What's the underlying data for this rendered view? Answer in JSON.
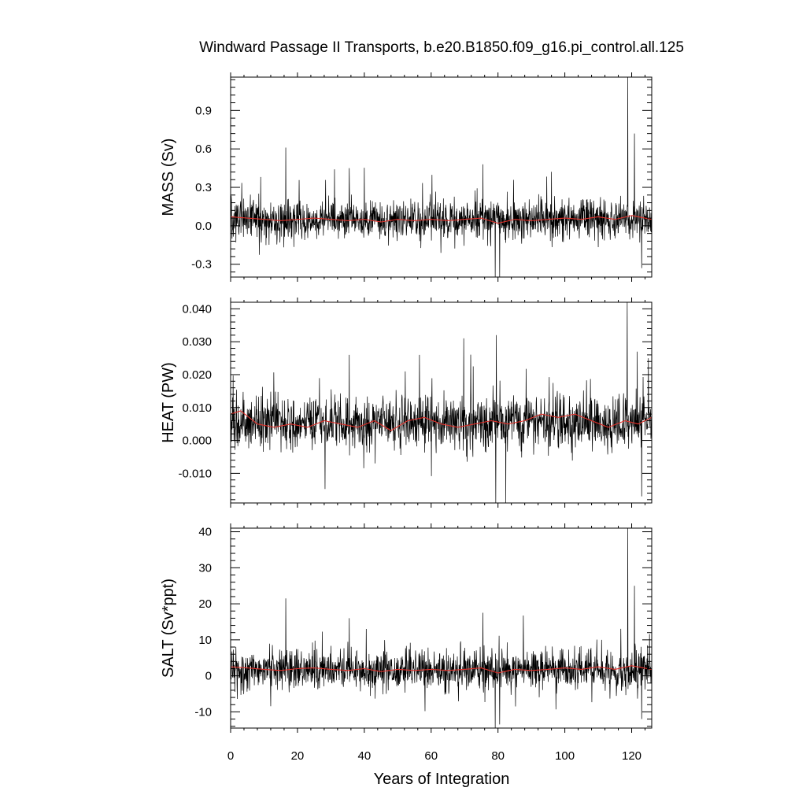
{
  "chart_data": {
    "title": "Windward Passage II Transports, b.e20.B1850.f09_g16.pi_control.all.125",
    "xlabel": "Years of Integration",
    "xlim": [
      0,
      126
    ],
    "x_ticks": [
      {
        "value": 0,
        "label": "0"
      },
      {
        "value": 20,
        "label": "20"
      },
      {
        "value": 40,
        "label": "40"
      },
      {
        "value": 60,
        "label": "60"
      },
      {
        "value": 80,
        "label": "80"
      },
      {
        "value": 100,
        "label": "100"
      },
      {
        "value": 120,
        "label": "120"
      }
    ],
    "colors": {
      "monthly": "#000000",
      "smoothed": "#e0302a",
      "frame": "#000000"
    },
    "panels": [
      {
        "type": "line",
        "ylabel": "MASS (Sv)",
        "ylim": [
          -0.4,
          1.16
        ],
        "y_ticks": [
          {
            "value": -0.3,
            "label": "-0.3"
          },
          {
            "value": 0.0,
            "label": "0.0"
          },
          {
            "value": 0.3,
            "label": "0.3"
          },
          {
            "value": 0.6,
            "label": "0.6"
          },
          {
            "value": 0.9,
            "label": "0.9"
          }
        ],
        "noise_baseline": 0.045,
        "noise_amplitude": 0.09,
        "spikes": [
          [
            16.5,
            0.61
          ],
          [
            35.5,
            0.45
          ],
          [
            75.5,
            0.48
          ],
          [
            79.2,
            -0.4
          ],
          [
            80.5,
            -0.4
          ],
          [
            118.8,
            1.16
          ],
          [
            120.8,
            0.72
          ],
          [
            123.0,
            -0.33
          ]
        ],
        "smoothed": [
          [
            0,
            0.07
          ],
          [
            5,
            0.06
          ],
          [
            10,
            0.05
          ],
          [
            15,
            0.04
          ],
          [
            20,
            0.05
          ],
          [
            25,
            0.06
          ],
          [
            30,
            0.05
          ],
          [
            35,
            0.04
          ],
          [
            40,
            0.05
          ],
          [
            45,
            0.03
          ],
          [
            50,
            0.05
          ],
          [
            55,
            0.04
          ],
          [
            60,
            0.05
          ],
          [
            65,
            0.04
          ],
          [
            70,
            0.05
          ],
          [
            75,
            0.06
          ],
          [
            80,
            0.02
          ],
          [
            85,
            0.05
          ],
          [
            90,
            0.04
          ],
          [
            95,
            0.05
          ],
          [
            100,
            0.06
          ],
          [
            105,
            0.05
          ],
          [
            110,
            0.07
          ],
          [
            115,
            0.05
          ],
          [
            120,
            0.08
          ],
          [
            126,
            0.05
          ]
        ]
      },
      {
        "type": "line",
        "ylabel": "HEAT (PW)",
        "ylim": [
          -0.019,
          0.042
        ],
        "y_ticks": [
          {
            "value": -0.01,
            "label": "-0.010"
          },
          {
            "value": 0.0,
            "label": "0.000"
          },
          {
            "value": 0.01,
            "label": "0.010"
          },
          {
            "value": 0.02,
            "label": "0.020"
          },
          {
            "value": 0.03,
            "label": "0.030"
          },
          {
            "value": 0.04,
            "label": "0.040"
          }
        ],
        "noise_baseline": 0.0055,
        "noise_amplitude": 0.0048,
        "spikes": [
          [
            35.5,
            0.026
          ],
          [
            56.5,
            0.026
          ],
          [
            79.5,
            0.032
          ],
          [
            79.3,
            -0.019
          ],
          [
            118.7,
            0.042
          ],
          [
            121.7,
            0.027
          ],
          [
            123.0,
            -0.017
          ],
          [
            125.0,
            0.025
          ]
        ],
        "smoothed": [
          [
            0,
            0.008
          ],
          [
            3,
            0.009
          ],
          [
            8,
            0.005
          ],
          [
            13,
            0.004
          ],
          [
            18,
            0.005
          ],
          [
            23,
            0.004
          ],
          [
            28,
            0.006
          ],
          [
            33,
            0.005
          ],
          [
            38,
            0.004
          ],
          [
            43,
            0.006
          ],
          [
            48,
            0.003
          ],
          [
            53,
            0.006
          ],
          [
            58,
            0.007
          ],
          [
            63,
            0.005
          ],
          [
            68,
            0.004
          ],
          [
            73,
            0.005
          ],
          [
            78,
            0.006
          ],
          [
            83,
            0.005
          ],
          [
            88,
            0.006
          ],
          [
            93,
            0.008
          ],
          [
            98,
            0.007
          ],
          [
            103,
            0.008
          ],
          [
            108,
            0.006
          ],
          [
            113,
            0.004
          ],
          [
            118,
            0.006
          ],
          [
            122,
            0.005
          ],
          [
            126,
            0.007
          ]
        ]
      },
      {
        "type": "line",
        "ylabel": "SALT (Sv*ppt)",
        "ylim": [
          -14.5,
          41
        ],
        "y_ticks": [
          {
            "value": -10,
            "label": "-10"
          },
          {
            "value": 0,
            "label": "0"
          },
          {
            "value": 10,
            "label": "10"
          },
          {
            "value": 20,
            "label": "20"
          },
          {
            "value": 30,
            "label": "30"
          },
          {
            "value": 40,
            "label": "40"
          }
        ],
        "noise_baseline": 1.6,
        "noise_amplitude": 3.2,
        "spikes": [
          [
            16.5,
            21.5
          ],
          [
            35.5,
            16
          ],
          [
            75.5,
            17.5
          ],
          [
            79.2,
            -14.5
          ],
          [
            80.5,
            -13.5
          ],
          [
            118.8,
            41
          ],
          [
            120.8,
            25
          ],
          [
            123.0,
            -12
          ]
        ],
        "smoothed": [
          [
            0,
            2.5
          ],
          [
            5,
            2.2
          ],
          [
            10,
            1.8
          ],
          [
            15,
            1.5
          ],
          [
            20,
            2.0
          ],
          [
            25,
            2.2
          ],
          [
            30,
            1.8
          ],
          [
            35,
            1.5
          ],
          [
            40,
            2.0
          ],
          [
            45,
            1.2
          ],
          [
            50,
            1.8
          ],
          [
            55,
            1.5
          ],
          [
            60,
            1.8
          ],
          [
            65,
            1.5
          ],
          [
            70,
            1.8
          ],
          [
            75,
            2.2
          ],
          [
            80,
            0.8
          ],
          [
            85,
            1.8
          ],
          [
            90,
            1.5
          ],
          [
            95,
            1.8
          ],
          [
            100,
            2.2
          ],
          [
            105,
            1.8
          ],
          [
            110,
            2.5
          ],
          [
            115,
            1.8
          ],
          [
            120,
            2.8
          ],
          [
            126,
            1.8
          ]
        ]
      }
    ]
  }
}
